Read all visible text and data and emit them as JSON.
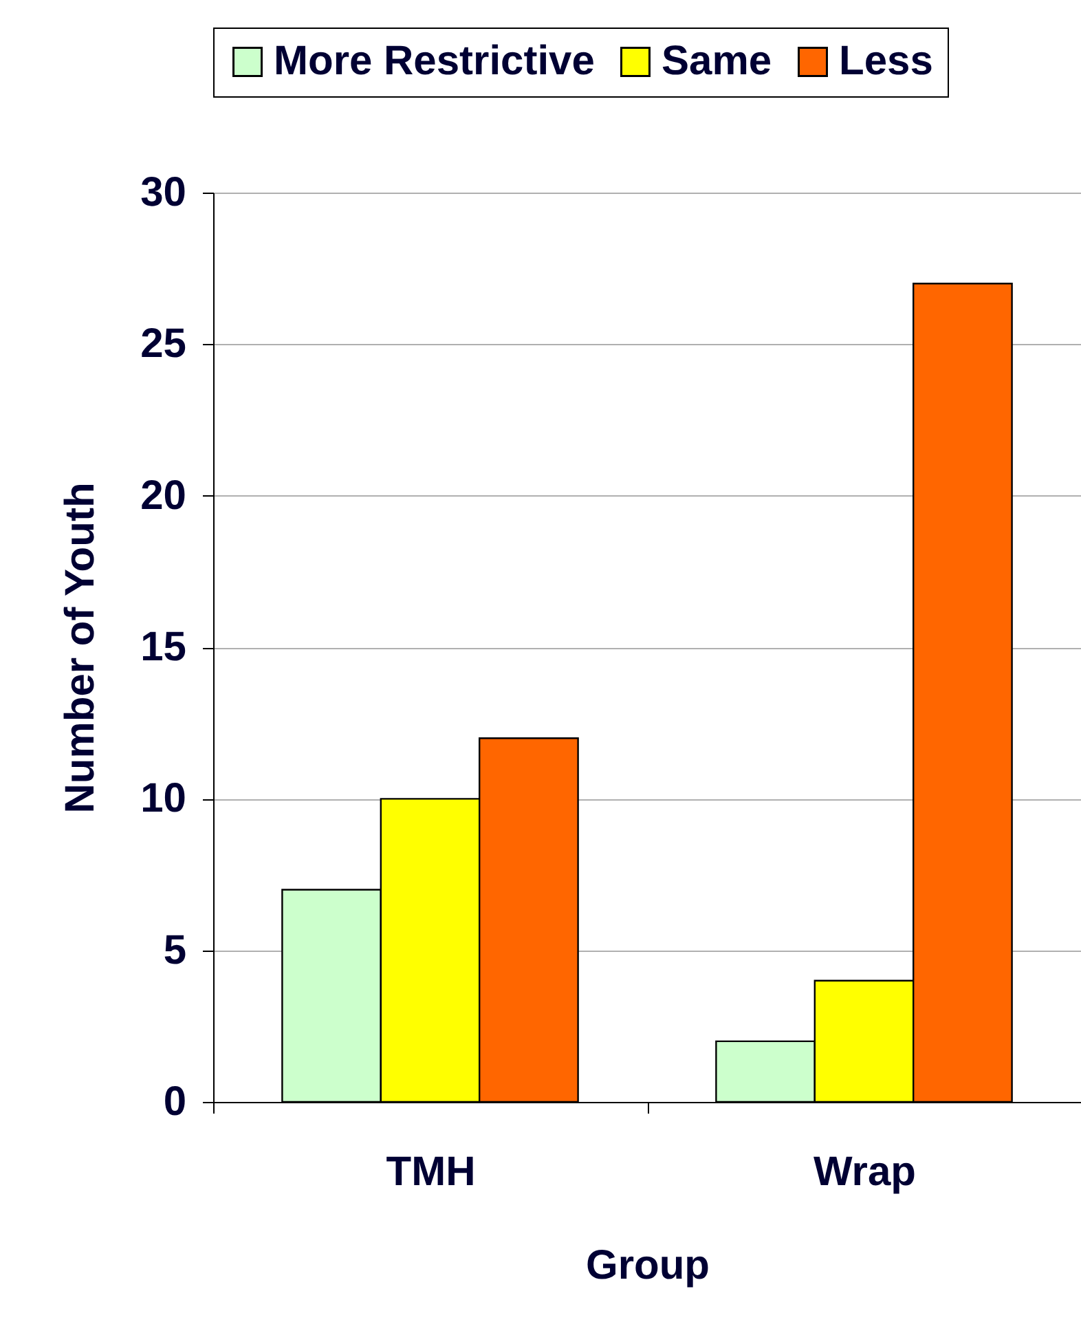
{
  "chart_data": {
    "type": "bar",
    "xlabel": "Group",
    "ylabel": "Number of Youth",
    "categories": [
      "TMH",
      "Wrap"
    ],
    "series": [
      {
        "name": "More Restrictive",
        "color": "#ccffcc",
        "values": [
          7,
          2
        ]
      },
      {
        "name": "Same",
        "color": "#ffff00",
        "values": [
          10,
          4
        ]
      },
      {
        "name": "Less",
        "color": "#ff6600",
        "values": [
          12,
          27
        ]
      }
    ],
    "ylim": [
      0,
      30
    ],
    "yticks": [
      0,
      5,
      10,
      15,
      20,
      25,
      30
    ],
    "grid": "y",
    "legend": "top"
  }
}
